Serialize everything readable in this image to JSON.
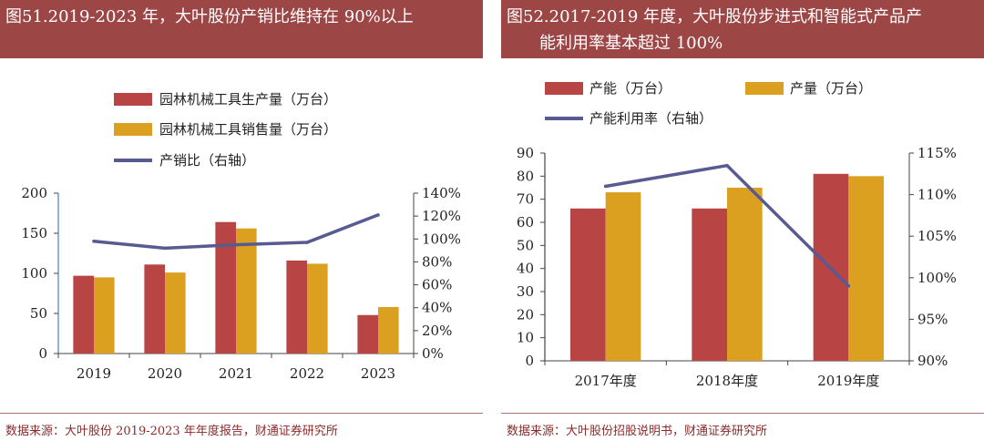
{
  "colors": {
    "bar_production": "#b84444",
    "bar_sales": "#dba020",
    "line": "#585a92",
    "title_bg": "#9c4646",
    "source_text": "#8a2a2a"
  },
  "left": {
    "title": "图51.2019-2023 年，大叶股份产销比维持在 90%以上",
    "source": "数据来源：大叶股份 2019-2023 年年度报告，财通证券研究所"
  },
  "right": {
    "title_line1": "图52.2017-2019 年度，大叶股份步进式和智能式产品产",
    "title_line2": "能利用率基本超过 100%",
    "source": "数据来源：大叶股份招股说明书，财通证券研究所"
  },
  "chart_data": [
    {
      "type": "bar",
      "categories": [
        "2019",
        "2020",
        "2021",
        "2022",
        "2023"
      ],
      "series": [
        {
          "name": "园林机械工具生产量（万台）",
          "kind": "bar",
          "axis": "left",
          "values": [
            97,
            111,
            164,
            116,
            48
          ]
        },
        {
          "name": "园林机械工具销售量（万台）",
          "kind": "bar",
          "axis": "left",
          "values": [
            95,
            101,
            156,
            112,
            58
          ]
        },
        {
          "name": "产销比（右轴）",
          "kind": "line",
          "axis": "right",
          "values": [
            98,
            92,
            95,
            97,
            121
          ]
        }
      ],
      "ylim": [
        0,
        200
      ],
      "yticks": [
        "0",
        "50",
        "100",
        "150",
        "200"
      ],
      "y2lim": [
        0,
        140
      ],
      "y2ticks": [
        "0%",
        "20%",
        "40%",
        "60%",
        "80%",
        "100%",
        "120%",
        "140%"
      ],
      "legend_position": "top-center"
    },
    {
      "type": "bar",
      "categories": [
        "2017年度",
        "2018年度",
        "2019年度"
      ],
      "series": [
        {
          "name": "产能（万台）",
          "kind": "bar",
          "axis": "left",
          "values": [
            66,
            66,
            81
          ]
        },
        {
          "name": "产量（万台）",
          "kind": "bar",
          "axis": "left",
          "values": [
            73,
            75,
            80
          ]
        },
        {
          "name": "产能利用率（右轴）",
          "kind": "line",
          "axis": "right",
          "values": [
            111,
            113.5,
            99
          ]
        }
      ],
      "ylim": [
        0,
        90
      ],
      "yticks": [
        "0",
        "10",
        "20",
        "30",
        "40",
        "50",
        "60",
        "70",
        "80",
        "90"
      ],
      "y2lim": [
        90,
        115
      ],
      "y2ticks": [
        "90%",
        "95%",
        "100%",
        "105%",
        "110%",
        "115%"
      ],
      "legend_position": "top-left"
    }
  ]
}
